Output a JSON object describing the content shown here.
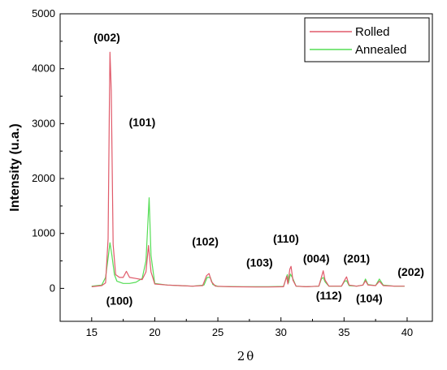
{
  "chart_data": {
    "type": "line",
    "xlabel": "2θ",
    "ylabel": "Intensity (u.a.)",
    "xlim": [
      12.5,
      42
    ],
    "ylim": [
      -600,
      5000
    ],
    "x_ticks": [
      15,
      20,
      25,
      30,
      35,
      40
    ],
    "x_tick_labels": [
      "15",
      "20",
      "25",
      "30",
      "35",
      "40"
    ],
    "y_ticks": [
      0,
      1000,
      2000,
      3000,
      4000,
      5000
    ],
    "y_tick_labels": [
      "0",
      "1000",
      "2000",
      "3000",
      "4000",
      "5000"
    ],
    "legend_position": "top-right",
    "grid": false,
    "series": [
      {
        "name": "Rolled",
        "color": "#e05a6a",
        "points": [
          [
            15.0,
            30
          ],
          [
            15.8,
            50
          ],
          [
            16.1,
            100
          ],
          [
            16.3,
            900
          ],
          [
            16.4,
            3200
          ],
          [
            16.45,
            4300
          ],
          [
            16.55,
            3600
          ],
          [
            16.7,
            800
          ],
          [
            16.9,
            250
          ],
          [
            17.2,
            200
          ],
          [
            17.5,
            200
          ],
          [
            17.75,
            310
          ],
          [
            18.0,
            200
          ],
          [
            18.5,
            180
          ],
          [
            19.0,
            160
          ],
          [
            19.3,
            300
          ],
          [
            19.5,
            780
          ],
          [
            19.7,
            300
          ],
          [
            20.0,
            80
          ],
          [
            21.0,
            60
          ],
          [
            22.0,
            50
          ],
          [
            23.0,
            40
          ],
          [
            23.8,
            50
          ],
          [
            24.1,
            230
          ],
          [
            24.3,
            270
          ],
          [
            24.5,
            120
          ],
          [
            24.8,
            40
          ],
          [
            26.0,
            30
          ],
          [
            28.0,
            25
          ],
          [
            29.0,
            25
          ],
          [
            30.2,
            30
          ],
          [
            30.45,
            220
          ],
          [
            30.55,
            80
          ],
          [
            30.7,
            350
          ],
          [
            30.8,
            400
          ],
          [
            30.95,
            150
          ],
          [
            31.2,
            40
          ],
          [
            32.0,
            30
          ],
          [
            33.0,
            40
          ],
          [
            33.2,
            200
          ],
          [
            33.35,
            320
          ],
          [
            33.5,
            150
          ],
          [
            33.8,
            40
          ],
          [
            34.8,
            40
          ],
          [
            35.05,
            150
          ],
          [
            35.2,
            210
          ],
          [
            35.4,
            60
          ],
          [
            36.0,
            40
          ],
          [
            36.5,
            60
          ],
          [
            36.7,
            140
          ],
          [
            36.9,
            60
          ],
          [
            37.5,
            50
          ],
          [
            37.8,
            130
          ],
          [
            38.1,
            50
          ],
          [
            39.0,
            40
          ],
          [
            39.8,
            40
          ]
        ]
      },
      {
        "name": "Annealed",
        "color": "#55dd55",
        "points": [
          [
            15.0,
            40
          ],
          [
            15.8,
            60
          ],
          [
            16.1,
            200
          ],
          [
            16.3,
            550
          ],
          [
            16.45,
            830
          ],
          [
            16.6,
            600
          ],
          [
            16.8,
            250
          ],
          [
            17.0,
            130
          ],
          [
            17.5,
            90
          ],
          [
            18.0,
            90
          ],
          [
            18.5,
            110
          ],
          [
            19.0,
            180
          ],
          [
            19.3,
            500
          ],
          [
            19.55,
            1650
          ],
          [
            19.7,
            600
          ],
          [
            20.0,
            90
          ],
          [
            21.0,
            60
          ],
          [
            22.0,
            50
          ],
          [
            23.0,
            40
          ],
          [
            23.9,
            60
          ],
          [
            24.15,
            200
          ],
          [
            24.4,
            200
          ],
          [
            24.6,
            70
          ],
          [
            25.0,
            35
          ],
          [
            27.0,
            30
          ],
          [
            29.0,
            30
          ],
          [
            30.2,
            35
          ],
          [
            30.5,
            250
          ],
          [
            30.6,
            100
          ],
          [
            30.75,
            260
          ],
          [
            30.9,
            200
          ],
          [
            31.2,
            40
          ],
          [
            32.0,
            30
          ],
          [
            33.0,
            40
          ],
          [
            33.2,
            170
          ],
          [
            33.35,
            200
          ],
          [
            33.5,
            120
          ],
          [
            33.8,
            40
          ],
          [
            34.8,
            40
          ],
          [
            35.05,
            130
          ],
          [
            35.2,
            140
          ],
          [
            35.4,
            50
          ],
          [
            36.0,
            40
          ],
          [
            36.5,
            60
          ],
          [
            36.7,
            170
          ],
          [
            36.9,
            70
          ],
          [
            37.5,
            50
          ],
          [
            37.8,
            170
          ],
          [
            38.1,
            60
          ],
          [
            39.0,
            40
          ],
          [
            39.8,
            40
          ]
        ]
      }
    ],
    "annotations": [
      {
        "text": "(002)",
        "x": 16.2,
        "y": 4500
      },
      {
        "text": "(101)",
        "x": 19.0,
        "y": 2950
      },
      {
        "text": "(100)",
        "x": 17.2,
        "y": -300
      },
      {
        "text": "(102)",
        "x": 24.0,
        "y": 780
      },
      {
        "text": "(103)",
        "x": 28.3,
        "y": 400
      },
      {
        "text": "(110)",
        "x": 30.4,
        "y": 830
      },
      {
        "text": "(004)",
        "x": 32.8,
        "y": 470
      },
      {
        "text": "(112)",
        "x": 33.8,
        "y": -200
      },
      {
        "text": "(201)",
        "x": 36.0,
        "y": 470
      },
      {
        "text": "(104)",
        "x": 37.0,
        "y": -250
      },
      {
        "text": "(202)",
        "x": 40.3,
        "y": 230
      }
    ]
  }
}
